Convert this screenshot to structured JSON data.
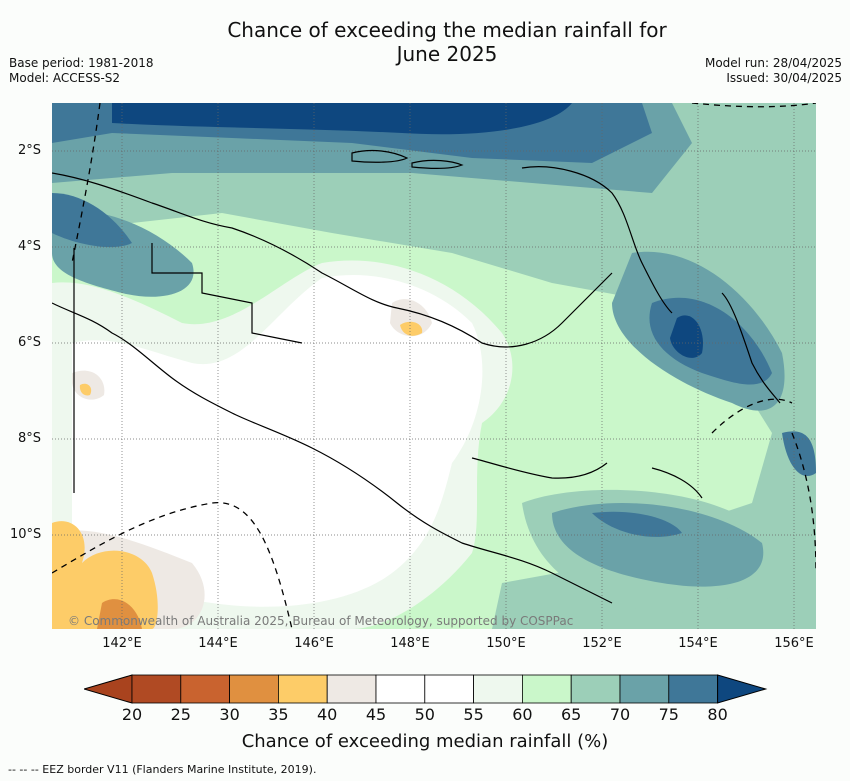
{
  "title_line1": "Chance of exceeding the median rainfall for",
  "title_line2": "June 2025",
  "meta": {
    "base_period": "Base period: 1981-2018",
    "model": "Model: ACCESS-S2",
    "model_run": "Model run: 28/04/2025",
    "issued": "Issued: 30/04/2025"
  },
  "lat_labels": [
    "2°S",
    "4°S",
    "6°S",
    "8°S",
    "10°S"
  ],
  "lon_labels": [
    "142°E",
    "144°E",
    "146°E",
    "148°E",
    "150°E",
    "152°E",
    "154°E",
    "156°E"
  ],
  "copyright": "© Commonwealth of Australia 2025, Bureau of Meteorology, supported by COSPPac",
  "colorbar": {
    "ticks": [
      "20",
      "25",
      "30",
      "35",
      "40",
      "45",
      "50",
      "55",
      "60",
      "65",
      "70",
      "75",
      "80"
    ],
    "colors": [
      "#a9431e",
      "#b04a23",
      "#c9632f",
      "#e09040",
      "#fdcc68",
      "#eee9e4",
      "#ffffff",
      "#ffffff",
      "#eef8ee",
      "#caf7ca",
      "#9ccfb8",
      "#6aa2a8",
      "#3f7798",
      "#0e477f"
    ],
    "label": "Chance of exceeding median rainfall (%)"
  },
  "footnote": "-- -- -- EEZ border V11 (Flanders Marine Institute, 2019)."
}
